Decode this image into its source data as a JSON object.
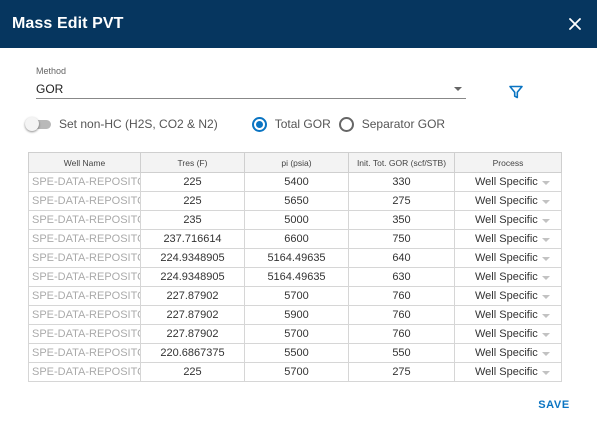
{
  "dialog": {
    "title": "Mass Edit PVT",
    "close_icon": "close-icon"
  },
  "method": {
    "label": "Method",
    "value": "GOR"
  },
  "options": {
    "toggle_label": "Set non-HC (H2S, CO2 & N2)",
    "toggle_on": false,
    "radio_total_label": "Total GOR",
    "radio_separator_label": "Separator GOR",
    "selected": "Total GOR"
  },
  "filter_icon": "filter-icon",
  "colors": {
    "header": "#06365f",
    "accent": "#0a74c2"
  },
  "table": {
    "headers": [
      "Well Name",
      "Tres (F)",
      "pi (psia)",
      "Init. Tot. GOR (scf/STB)",
      "Process"
    ],
    "rows": [
      {
        "well": "SPE-DATA-REPOSITOR",
        "tres": "225",
        "pi": "5400",
        "gor": "330",
        "process": "Well Specific"
      },
      {
        "well": "SPE-DATA-REPOSITOR",
        "tres": "225",
        "pi": "5650",
        "gor": "275",
        "process": "Well Specific"
      },
      {
        "well": "SPE-DATA-REPOSITOR",
        "tres": "235",
        "pi": "5000",
        "gor": "350",
        "process": "Well Specific"
      },
      {
        "well": "SPE-DATA-REPOSITOR",
        "tres": "237.716614",
        "pi": "6600",
        "gor": "750",
        "process": "Well Specific"
      },
      {
        "well": "SPE-DATA-REPOSITOR",
        "tres": "224.9348905",
        "pi": "5164.49635",
        "gor": "640",
        "process": "Well Specific"
      },
      {
        "well": "SPE-DATA-REPOSITOR",
        "tres": "224.9348905",
        "pi": "5164.49635",
        "gor": "630",
        "process": "Well Specific"
      },
      {
        "well": "SPE-DATA-REPOSITOR",
        "tres": "227.87902",
        "pi": "5700",
        "gor": "760",
        "process": "Well Specific"
      },
      {
        "well": "SPE-DATA-REPOSITOR",
        "tres": "227.87902",
        "pi": "5900",
        "gor": "760",
        "process": "Well Specific"
      },
      {
        "well": "SPE-DATA-REPOSITOR",
        "tres": "227.87902",
        "pi": "5700",
        "gor": "760",
        "process": "Well Specific"
      },
      {
        "well": "SPE-DATA-REPOSITOR",
        "tres": "220.6867375",
        "pi": "5500",
        "gor": "550",
        "process": "Well Specific"
      },
      {
        "well": "SPE-DATA-REPOSITOR",
        "tres": "225",
        "pi": "5700",
        "gor": "275",
        "process": "Well Specific"
      }
    ]
  },
  "actions": {
    "save_label": "SAVE"
  }
}
